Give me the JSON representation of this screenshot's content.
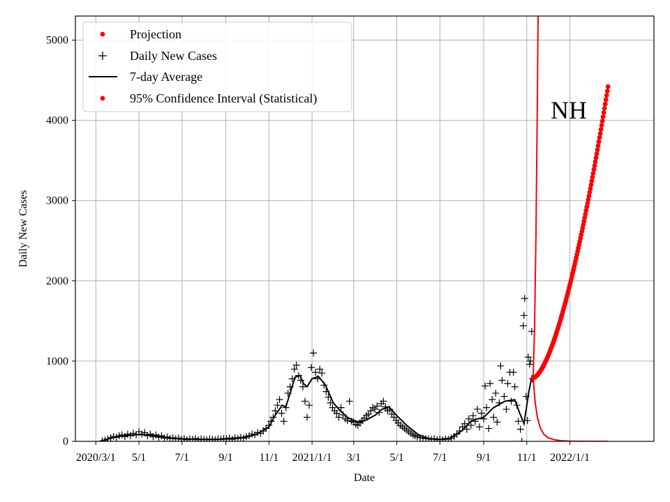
{
  "chart_data": {
    "type": "scatter",
    "title": "",
    "xlabel": "Date",
    "ylabel": "Daily New Cases",
    "annotation": "NH",
    "grid": true,
    "legend_placement": "top-left",
    "xlim": [
      "2020-02-01",
      "2022-04-30"
    ],
    "ylim": [
      0,
      5300
    ],
    "x_ticks": [
      {
        "date": "2020-03-01",
        "label": "2020/3/1"
      },
      {
        "date": "2020-05-01",
        "label": "5/1"
      },
      {
        "date": "2020-07-01",
        "label": "7/1"
      },
      {
        "date": "2020-09-01",
        "label": "9/1"
      },
      {
        "date": "2020-11-01",
        "label": "11/1"
      },
      {
        "date": "2021-01-01",
        "label": "2021/1/1"
      },
      {
        "date": "2021-03-01",
        "label": "3/1"
      },
      {
        "date": "2021-05-01",
        "label": "5/1"
      },
      {
        "date": "2021-07-01",
        "label": "7/1"
      },
      {
        "date": "2021-09-01",
        "label": "9/1"
      },
      {
        "date": "2021-11-01",
        "label": "11/1"
      },
      {
        "date": "2022-01-01",
        "label": "2022/1/1"
      }
    ],
    "y_ticks": [
      0,
      1000,
      2000,
      3000,
      4000,
      5000
    ],
    "colors": {
      "projection": "#ff0000",
      "interval": "#ff0000",
      "observed": "#000000",
      "average": "#000000",
      "grid": "#b0b0b0"
    },
    "legend": [
      {
        "label": "Projection",
        "marker": "dot",
        "color": "#ff0000"
      },
      {
        "label": "Daily New Cases",
        "marker": "plus",
        "color": "#000000"
      },
      {
        "label": "7-day Average",
        "marker": "line",
        "color": "#000000"
      },
      {
        "label": "95% Confidence Interval (Statistical)",
        "marker": "dot",
        "color": "#ff0000"
      }
    ],
    "series": [
      {
        "name": "7-day Average",
        "style": "line",
        "points": [
          [
            "2020-03-08",
            5
          ],
          [
            "2020-03-15",
            20
          ],
          [
            "2020-03-22",
            40
          ],
          [
            "2020-04-01",
            60
          ],
          [
            "2020-04-15",
            75
          ],
          [
            "2020-05-01",
            85
          ],
          [
            "2020-05-15",
            80
          ],
          [
            "2020-06-01",
            60
          ],
          [
            "2020-06-15",
            40
          ],
          [
            "2020-07-01",
            30
          ],
          [
            "2020-07-15",
            28
          ],
          [
            "2020-08-01",
            25
          ],
          [
            "2020-08-15",
            25
          ],
          [
            "2020-09-01",
            28
          ],
          [
            "2020-09-15",
            35
          ],
          [
            "2020-10-01",
            50
          ],
          [
            "2020-10-15",
            90
          ],
          [
            "2020-11-01",
            180
          ],
          [
            "2020-11-10",
            330
          ],
          [
            "2020-11-20",
            450
          ],
          [
            "2020-11-25",
            430
          ],
          [
            "2020-12-01",
            600
          ],
          [
            "2020-12-08",
            800
          ],
          [
            "2020-12-15",
            820
          ],
          [
            "2020-12-20",
            720
          ],
          [
            "2020-12-25",
            680
          ],
          [
            "2021-01-01",
            780
          ],
          [
            "2021-01-10",
            810
          ],
          [
            "2021-01-20",
            700
          ],
          [
            "2021-01-31",
            480
          ],
          [
            "2021-02-10",
            380
          ],
          [
            "2021-02-20",
            300
          ],
          [
            "2021-03-01",
            260
          ],
          [
            "2021-03-10",
            240
          ],
          [
            "2021-03-20",
            270
          ],
          [
            "2021-04-01",
            330
          ],
          [
            "2021-04-10",
            400
          ],
          [
            "2021-04-20",
            430
          ],
          [
            "2021-05-01",
            320
          ],
          [
            "2021-05-15",
            200
          ],
          [
            "2021-06-01",
            80
          ],
          [
            "2021-06-15",
            35
          ],
          [
            "2021-07-01",
            25
          ],
          [
            "2021-07-15",
            40
          ],
          [
            "2021-08-01",
            130
          ],
          [
            "2021-08-15",
            260
          ],
          [
            "2021-09-01",
            300
          ],
          [
            "2021-09-15",
            420
          ],
          [
            "2021-10-01",
            500
          ],
          [
            "2021-10-15",
            520
          ],
          [
            "2021-10-22",
            350
          ],
          [
            "2021-10-28",
            220
          ],
          [
            "2021-11-04",
            620
          ],
          [
            "2021-11-08",
            800
          ],
          [
            "2021-11-11",
            720
          ]
        ]
      },
      {
        "name": "Daily New Cases",
        "style": "plus",
        "points": [
          [
            "2020-03-10",
            5
          ],
          [
            "2020-03-14",
            15
          ],
          [
            "2020-03-18",
            30
          ],
          [
            "2020-03-22",
            45
          ],
          [
            "2020-03-26",
            60
          ],
          [
            "2020-03-30",
            50
          ],
          [
            "2020-04-03",
            70
          ],
          [
            "2020-04-07",
            80
          ],
          [
            "2020-04-11",
            60
          ],
          [
            "2020-04-15",
            90
          ],
          [
            "2020-04-19",
            70
          ],
          [
            "2020-04-23",
            100
          ],
          [
            "2020-04-27",
            80
          ],
          [
            "2020-05-01",
            120
          ],
          [
            "2020-05-05",
            90
          ],
          [
            "2020-05-09",
            110
          ],
          [
            "2020-05-13",
            70
          ],
          [
            "2020-05-17",
            90
          ],
          [
            "2020-05-21",
            60
          ],
          [
            "2020-05-25",
            80
          ],
          [
            "2020-05-29",
            50
          ],
          [
            "2020-06-02",
            70
          ],
          [
            "2020-06-06",
            40
          ],
          [
            "2020-06-10",
            55
          ],
          [
            "2020-06-14",
            35
          ],
          [
            "2020-06-18",
            45
          ],
          [
            "2020-06-22",
            30
          ],
          [
            "2020-06-26",
            40
          ],
          [
            "2020-06-30",
            25
          ],
          [
            "2020-07-04",
            35
          ],
          [
            "2020-07-08",
            20
          ],
          [
            "2020-07-12",
            30
          ],
          [
            "2020-07-16",
            25
          ],
          [
            "2020-07-20",
            35
          ],
          [
            "2020-07-24",
            20
          ],
          [
            "2020-07-28",
            30
          ],
          [
            "2020-08-01",
            25
          ],
          [
            "2020-08-05",
            20
          ],
          [
            "2020-08-09",
            30
          ],
          [
            "2020-08-13",
            25
          ],
          [
            "2020-08-17",
            20
          ],
          [
            "2020-08-21",
            30
          ],
          [
            "2020-08-25",
            25
          ],
          [
            "2020-08-29",
            35
          ],
          [
            "2020-09-02",
            30
          ],
          [
            "2020-09-06",
            40
          ],
          [
            "2020-09-10",
            25
          ],
          [
            "2020-09-14",
            45
          ],
          [
            "2020-09-18",
            35
          ],
          [
            "2020-09-22",
            50
          ],
          [
            "2020-09-26",
            40
          ],
          [
            "2020-09-30",
            60
          ],
          [
            "2020-10-04",
            70
          ],
          [
            "2020-10-08",
            90
          ],
          [
            "2020-10-12",
            80
          ],
          [
            "2020-10-16",
            110
          ],
          [
            "2020-10-20",
            100
          ],
          [
            "2020-10-24",
            130
          ],
          [
            "2020-10-28",
            160
          ],
          [
            "2020-11-01",
            200
          ],
          [
            "2020-11-04",
            250
          ],
          [
            "2020-11-07",
            300
          ],
          [
            "2020-11-10",
            380
          ],
          [
            "2020-11-13",
            450
          ],
          [
            "2020-11-16",
            520
          ],
          [
            "2020-11-19",
            350
          ],
          [
            "2020-11-22",
            250
          ],
          [
            "2020-11-25",
            420
          ],
          [
            "2020-11-28",
            600
          ],
          [
            "2020-12-01",
            680
          ],
          [
            "2020-12-04",
            780
          ],
          [
            "2020-12-07",
            900
          ],
          [
            "2020-12-10",
            950
          ],
          [
            "2020-12-13",
            820
          ],
          [
            "2020-12-16",
            760
          ],
          [
            "2020-12-19",
            680
          ],
          [
            "2020-12-22",
            500
          ],
          [
            "2020-12-25",
            300
          ],
          [
            "2020-12-28",
            450
          ],
          [
            "2020-12-31",
            920
          ],
          [
            "2021-01-03",
            1100
          ],
          [
            "2021-01-06",
            860
          ],
          [
            "2021-01-09",
            780
          ],
          [
            "2021-01-12",
            900
          ],
          [
            "2021-01-15",
            850
          ],
          [
            "2021-01-18",
            700
          ],
          [
            "2021-01-21",
            620
          ],
          [
            "2021-01-24",
            550
          ],
          [
            "2021-01-27",
            480
          ],
          [
            "2021-01-30",
            420
          ],
          [
            "2021-02-02",
            380
          ],
          [
            "2021-02-05",
            350
          ],
          [
            "2021-02-08",
            300
          ],
          [
            "2021-02-11",
            420
          ],
          [
            "2021-02-14",
            330
          ],
          [
            "2021-02-17",
            280
          ],
          [
            "2021-02-20",
            260
          ],
          [
            "2021-02-23",
            500
          ],
          [
            "2021-02-26",
            250
          ],
          [
            "2021-03-01",
            240
          ],
          [
            "2021-03-04",
            210
          ],
          [
            "2021-03-07",
            200
          ],
          [
            "2021-03-10",
            230
          ],
          [
            "2021-03-13",
            260
          ],
          [
            "2021-03-16",
            290
          ],
          [
            "2021-03-19",
            320
          ],
          [
            "2021-03-22",
            340
          ],
          [
            "2021-03-25",
            380
          ],
          [
            "2021-03-28",
            420
          ],
          [
            "2021-03-31",
            400
          ],
          [
            "2021-04-03",
            440
          ],
          [
            "2021-04-06",
            360
          ],
          [
            "2021-04-09",
            470
          ],
          [
            "2021-04-12",
            500
          ],
          [
            "2021-04-15",
            430
          ],
          [
            "2021-04-18",
            380
          ],
          [
            "2021-04-21",
            400
          ],
          [
            "2021-04-24",
            340
          ],
          [
            "2021-04-27",
            300
          ],
          [
            "2021-04-30",
            260
          ],
          [
            "2021-05-03",
            230
          ],
          [
            "2021-05-06",
            200
          ],
          [
            "2021-05-09",
            180
          ],
          [
            "2021-05-12",
            160
          ],
          [
            "2021-05-15",
            140
          ],
          [
            "2021-05-18",
            120
          ],
          [
            "2021-05-21",
            100
          ],
          [
            "2021-05-24",
            80
          ],
          [
            "2021-05-27",
            70
          ],
          [
            "2021-05-30",
            55
          ],
          [
            "2021-06-03",
            45
          ],
          [
            "2021-06-07",
            40
          ],
          [
            "2021-06-11",
            35
          ],
          [
            "2021-06-15",
            30
          ],
          [
            "2021-06-19",
            25
          ],
          [
            "2021-06-23",
            30
          ],
          [
            "2021-06-27",
            20
          ],
          [
            "2021-07-01",
            25
          ],
          [
            "2021-07-05",
            20
          ],
          [
            "2021-07-09",
            30
          ],
          [
            "2021-07-13",
            25
          ],
          [
            "2021-07-17",
            40
          ],
          [
            "2021-07-21",
            60
          ],
          [
            "2021-07-25",
            90
          ],
          [
            "2021-07-29",
            130
          ],
          [
            "2021-08-02",
            180
          ],
          [
            "2021-08-05",
            220
          ],
          [
            "2021-08-08",
            150
          ],
          [
            "2021-08-11",
            280
          ],
          [
            "2021-08-14",
            200
          ],
          [
            "2021-08-17",
            320
          ],
          [
            "2021-08-20",
            250
          ],
          [
            "2021-08-23",
            400
          ],
          [
            "2021-08-26",
            180
          ],
          [
            "2021-08-29",
            350
          ],
          [
            "2021-09-01",
            280
          ],
          [
            "2021-09-03",
            690
          ],
          [
            "2021-09-05",
            420
          ],
          [
            "2021-09-08",
            160
          ],
          [
            "2021-09-10",
            720
          ],
          [
            "2021-09-13",
            520
          ],
          [
            "2021-09-15",
            300
          ],
          [
            "2021-09-18",
            600
          ],
          [
            "2021-09-20",
            240
          ],
          [
            "2021-09-23",
            480
          ],
          [
            "2021-09-25",
            940
          ],
          [
            "2021-09-27",
            760
          ],
          [
            "2021-09-30",
            560
          ],
          [
            "2021-10-03",
            400
          ],
          [
            "2021-10-05",
            720
          ],
          [
            "2021-10-08",
            860
          ],
          [
            "2021-10-10",
            500
          ],
          [
            "2021-10-13",
            860
          ],
          [
            "2021-10-15",
            680
          ],
          [
            "2021-10-18",
            450
          ],
          [
            "2021-10-20",
            250
          ],
          [
            "2021-10-23",
            150
          ],
          [
            "2021-10-25",
            0
          ],
          [
            "2021-10-27",
            1440
          ],
          [
            "2021-10-28",
            1570
          ],
          [
            "2021-10-29",
            1780
          ],
          [
            "2021-10-31",
            560
          ],
          [
            "2021-11-02",
            260
          ],
          [
            "2021-11-03",
            1050
          ],
          [
            "2021-11-05",
            960
          ],
          [
            "2021-11-06",
            1000
          ],
          [
            "2021-11-08",
            1370
          ],
          [
            "2021-11-09",
            780
          ]
        ]
      },
      {
        "name": "Projection",
        "style": "line",
        "points": [
          [
            "2021-11-10",
            790
          ],
          [
            "2021-11-12",
            1400
          ],
          [
            "2021-11-14",
            2600
          ],
          [
            "2021-11-16",
            4300
          ],
          [
            "2021-11-17",
            5300
          ]
        ]
      },
      {
        "name": "Projection (lower)",
        "style": "line",
        "points": [
          [
            "2021-11-10",
            790
          ],
          [
            "2021-11-13",
            480
          ],
          [
            "2021-11-16",
            300
          ],
          [
            "2021-11-20",
            170
          ],
          [
            "2021-11-25",
            90
          ],
          [
            "2021-12-01",
            45
          ],
          [
            "2021-12-10",
            20
          ],
          [
            "2021-12-20",
            8
          ],
          [
            "2022-01-01",
            3
          ],
          [
            "2022-01-15",
            1
          ],
          [
            "2022-02-01",
            0
          ],
          [
            "2022-02-24",
            0
          ]
        ]
      },
      {
        "name": "95% Confidence Interval (Statistical)",
        "style": "dot",
        "curve": {
          "start": "2021-11-10",
          "end": "2022-02-24",
          "start_value": 790,
          "end_value": 4420,
          "exponent": 1.6,
          "step_days": 1
        }
      }
    ]
  }
}
